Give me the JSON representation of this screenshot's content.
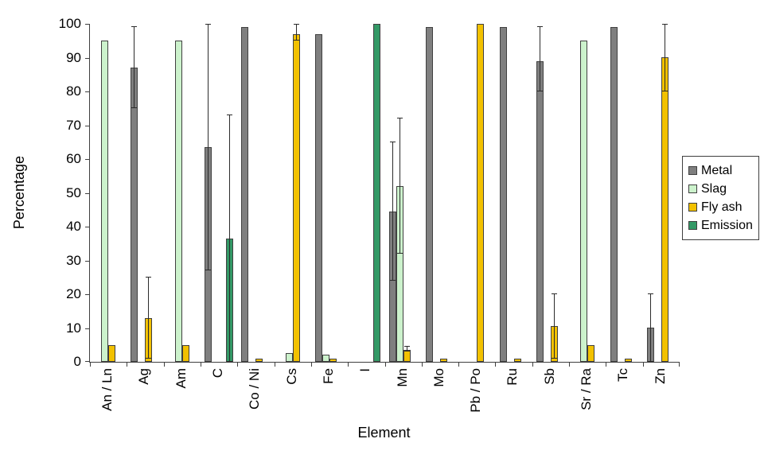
{
  "chart_data": {
    "type": "bar",
    "title": "",
    "xlabel": "Element",
    "ylabel": "Percentage",
    "ylim": [
      0,
      100
    ],
    "yticks": [
      0,
      10,
      20,
      30,
      40,
      50,
      60,
      70,
      80,
      90,
      100
    ],
    "grid": false,
    "legend_position": "right",
    "legend": [
      "Metal",
      "Slag",
      "Fly ash",
      "Emission"
    ],
    "categories": [
      "An / Ln",
      "Ag",
      "Am",
      "C",
      "Co / Ni",
      "Cs",
      "Fe",
      "I",
      "Mn",
      "Mo",
      "Pb / Po",
      "Ru",
      "Sb",
      "Sr / Ra",
      "Tc",
      "Zn"
    ],
    "series": [
      {
        "name": "Metal",
        "color": "#7F7F7F",
        "values": [
          null,
          87,
          null,
          63.5,
          99,
          null,
          97,
          null,
          44.5,
          99,
          null,
          99,
          89,
          null,
          99,
          10
        ],
        "errors": [
          null,
          [
            75,
            99
          ],
          null,
          [
            27,
            100
          ],
          null,
          null,
          null,
          null,
          [
            24,
            65
          ],
          null,
          null,
          null,
          [
            80,
            99
          ],
          null,
          null,
          [
            0,
            20
          ]
        ]
      },
      {
        "name": "Slag",
        "color": "#CCF2CC",
        "values": [
          95,
          null,
          95,
          null,
          null,
          2.5,
          2,
          null,
          52,
          null,
          null,
          null,
          null,
          95,
          null,
          null
        ],
        "errors": [
          null,
          null,
          null,
          null,
          null,
          null,
          null,
          null,
          [
            32,
            72
          ],
          null,
          null,
          null,
          null,
          null,
          null,
          null
        ]
      },
      {
        "name": "Fly ash",
        "color": "#F2C100",
        "values": [
          5,
          13,
          5,
          null,
          1,
          97,
          1,
          null,
          3.5,
          1,
          100,
          1,
          10.5,
          5,
          1,
          90
        ],
        "errors": [
          null,
          [
            1,
            25
          ],
          null,
          null,
          null,
          [
            95,
            100
          ],
          null,
          null,
          [
            3,
            4.5
          ],
          null,
          null,
          null,
          [
            1,
            20
          ],
          null,
          null,
          [
            80,
            100
          ]
        ]
      },
      {
        "name": "Emission",
        "color": "#339966",
        "values": [
          null,
          null,
          null,
          36.5,
          null,
          null,
          null,
          100,
          null,
          null,
          null,
          null,
          null,
          null,
          null,
          null
        ],
        "errors": [
          null,
          null,
          null,
          [
            0,
            73
          ],
          null,
          null,
          null,
          null,
          null,
          null,
          null,
          null,
          null,
          null,
          null,
          null
        ]
      }
    ]
  }
}
